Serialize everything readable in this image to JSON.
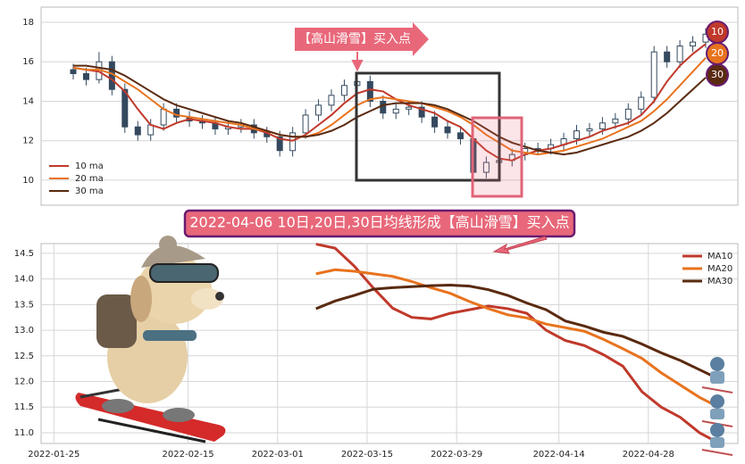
{
  "chart_data": [
    {
      "type": "candlestick",
      "open": [
        15.6,
        15.4,
        15.1,
        16.0,
        14.6,
        12.7,
        12.3,
        12.8,
        13.6,
        13.2,
        13.0,
        12.9,
        12.6,
        12.7,
        12.8,
        12.4,
        12.2,
        11.5,
        12.4,
        13.3,
        13.8,
        14.3,
        14.8,
        15.0,
        14.0,
        13.4,
        13.6,
        13.7,
        13.2,
        12.7,
        12.4,
        12.1,
        10.4,
        10.9,
        11.0,
        11.3,
        11.6,
        11.6,
        11.8,
        12.1,
        12.5,
        12.6,
        12.9,
        13.1,
        13.6,
        14.2,
        16.5,
        16.0,
        16.8,
        17.0
      ],
      "high": [
        15.9,
        15.7,
        16.5,
        16.3,
        14.9,
        13.0,
        13.1,
        13.9,
        13.9,
        13.5,
        13.3,
        13.2,
        13.0,
        13.1,
        13.1,
        12.7,
        12.5,
        12.7,
        13.6,
        14.1,
        14.6,
        15.1,
        15.3,
        15.3,
        14.3,
        13.9,
        14.0,
        14.0,
        13.5,
        13.0,
        12.7,
        12.4,
        11.2,
        11.3,
        11.6,
        11.9,
        11.9,
        12.1,
        12.4,
        12.8,
        12.9,
        13.2,
        13.4,
        13.9,
        14.5,
        16.8,
        16.8,
        17.1,
        17.3,
        17.7
      ],
      "low": [
        15.1,
        14.8,
        14.9,
        14.3,
        12.4,
        12.0,
        12.0,
        12.5,
        12.9,
        12.7,
        12.6,
        12.3,
        12.3,
        12.4,
        12.1,
        11.9,
        11.2,
        11.2,
        12.1,
        13.0,
        13.5,
        14.0,
        14.5,
        13.7,
        13.1,
        13.1,
        13.3,
        12.9,
        12.4,
        12.1,
        11.8,
        10.1,
        10.1,
        10.6,
        10.7,
        11.0,
        11.3,
        11.3,
        11.5,
        11.8,
        12.2,
        12.3,
        12.6,
        12.8,
        13.3,
        13.9,
        15.7,
        15.7,
        16.5,
        16.7
      ],
      "close": [
        15.4,
        15.1,
        16.0,
        14.6,
        12.7,
        12.3,
        12.8,
        13.6,
        13.2,
        13.0,
        12.9,
        12.6,
        12.7,
        12.8,
        12.4,
        12.2,
        11.5,
        12.4,
        13.3,
        13.8,
        14.3,
        14.8,
        15.0,
        14.0,
        13.4,
        13.6,
        13.7,
        13.2,
        12.7,
        12.4,
        12.1,
        10.4,
        10.9,
        11.0,
        11.3,
        11.6,
        11.6,
        11.8,
        12.1,
        12.5,
        12.6,
        12.9,
        13.1,
        13.6,
        14.2,
        16.5,
        16.0,
        16.8,
        17.0,
        17.4
      ],
      "color": "#34495e",
      "series": [
        {
          "name": "10 ma",
          "color": "#c0392b",
          "values": [
            15.7,
            15.6,
            15.5,
            15.1,
            14.5,
            13.6,
            12.8,
            12.6,
            12.9,
            13.1,
            13.0,
            12.9,
            12.7,
            12.6,
            12.6,
            12.4,
            12.1,
            12.0,
            12.3,
            12.8,
            13.3,
            13.9,
            14.4,
            14.6,
            14.5,
            14.1,
            13.8,
            13.6,
            13.4,
            13.0,
            12.7,
            12.1,
            11.5,
            11.1,
            11.0,
            11.3,
            11.5,
            11.6,
            11.8,
            12.0,
            12.2,
            12.5,
            12.7,
            12.9,
            13.3,
            14.0,
            15.0,
            15.8,
            16.4,
            16.9
          ]
        },
        {
          "name": "20 ma",
          "color": "#e8731e",
          "values": [
            15.7,
            15.6,
            15.6,
            15.4,
            15.0,
            14.6,
            14.1,
            13.6,
            13.3,
            13.2,
            13.1,
            13.0,
            12.9,
            12.8,
            12.6,
            12.5,
            12.3,
            12.2,
            12.2,
            12.4,
            12.8,
            13.3,
            13.8,
            14.1,
            14.2,
            14.1,
            14.0,
            13.9,
            13.7,
            13.5,
            13.2,
            12.8,
            12.3,
            11.9,
            11.5,
            11.4,
            11.3,
            11.4,
            11.5,
            11.7,
            11.9,
            12.1,
            12.4,
            12.7,
            13.0,
            13.5,
            14.1,
            14.8,
            15.5,
            16.2
          ]
        },
        {
          "name": "30 ma",
          "color": "#5a2a10",
          "values": [
            15.8,
            15.8,
            15.7,
            15.6,
            15.3,
            14.9,
            14.5,
            14.1,
            13.8,
            13.6,
            13.4,
            13.2,
            13.0,
            12.9,
            12.7,
            12.5,
            12.3,
            12.2,
            12.2,
            12.3,
            12.5,
            12.8,
            13.2,
            13.5,
            13.8,
            13.9,
            13.9,
            13.9,
            13.8,
            13.6,
            13.3,
            13.0,
            12.6,
            12.2,
            11.9,
            11.7,
            11.5,
            11.4,
            11.3,
            11.4,
            11.6,
            11.8,
            12.0,
            12.2,
            12.5,
            12.9,
            13.4,
            14.0,
            14.6,
            15.2
          ]
        }
      ],
      "ylim": [
        8.73,
        18.77
      ],
      "yticks": [
        10,
        12,
        14,
        16,
        18
      ],
      "grid": true,
      "legend": "lower left",
      "annotation": "【高山滑雪】买入点",
      "badges": [
        {
          "label": "10",
          "color": "#c0392b"
        },
        {
          "label": "20",
          "color": "#e8731e"
        },
        {
          "label": "30",
          "color": "#5a2a10"
        }
      ]
    },
    {
      "type": "line",
      "title": "2022-04-06 10日,20日,30日均线形成【高山滑雪】买入点",
      "x": [
        "2022-03-07",
        "2022-03-10",
        "2022-03-13",
        "2022-03-16",
        "2022-03-19",
        "2022-03-22",
        "2022-03-25",
        "2022-03-28",
        "2022-03-31",
        "2022-04-03",
        "2022-04-06",
        "2022-04-09",
        "2022-04-12",
        "2022-04-15",
        "2022-04-18",
        "2022-04-21",
        "2022-04-24",
        "2022-04-27",
        "2022-04-30",
        "2022-05-03",
        "2022-05-06",
        "2022-05-09"
      ],
      "series": [
        {
          "name": "MA10",
          "color": "#c0392b",
          "values": [
            14.68,
            14.6,
            14.25,
            13.82,
            13.43,
            13.25,
            13.22,
            13.33,
            13.4,
            13.47,
            13.42,
            13.33,
            13.0,
            12.8,
            12.7,
            12.52,
            12.3,
            11.8,
            11.5,
            11.3,
            11.0,
            10.8
          ]
        },
        {
          "name": "MA20",
          "color": "#e8731e",
          "values": [
            14.1,
            14.18,
            14.15,
            14.1,
            14.05,
            13.95,
            13.83,
            13.72,
            13.56,
            13.42,
            13.3,
            13.24,
            13.12,
            13.05,
            12.98,
            12.82,
            12.64,
            12.45,
            12.17,
            11.93,
            11.69,
            11.5
          ]
        },
        {
          "name": "MA30",
          "color": "#5a2a10",
          "values": [
            13.42,
            13.57,
            13.68,
            13.8,
            13.83,
            13.85,
            13.87,
            13.88,
            13.86,
            13.79,
            13.68,
            13.53,
            13.4,
            13.18,
            13.08,
            12.96,
            12.88,
            12.73,
            12.56,
            12.41,
            12.23,
            12.05
          ]
        }
      ],
      "xlim": [
        "2022-01-23",
        "2022-05-12"
      ],
      "xticks": [
        "2022-01-25",
        "2022-02-15",
        "2022-03-01",
        "2022-03-15",
        "2022-03-29",
        "2022-04-14",
        "2022-04-28"
      ],
      "ylim": [
        10.79,
        14.69
      ],
      "yticks": [
        {
          "value": 11,
          "label": "11.0"
        },
        11.5,
        {
          "value": 12,
          "label": "12.0"
        },
        12.5,
        {
          "value": 13,
          "label": "13.0"
        },
        13.5,
        {
          "value": 14,
          "label": "14.0"
        },
        14.5
      ],
      "grid": true,
      "legend": "upper right"
    }
  ]
}
